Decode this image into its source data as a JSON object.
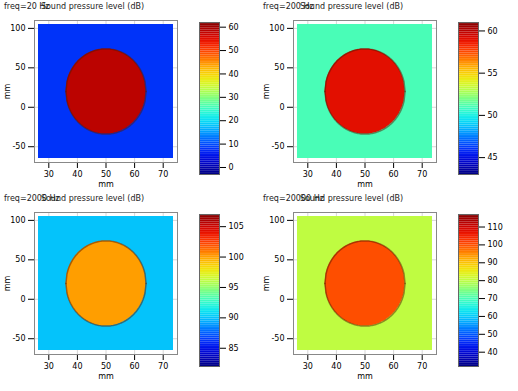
{
  "chart_data": [
    {
      "type": "surface",
      "title": "freq=20 Hz",
      "subtitle": "Sound pressure level (dB)",
      "x_label": "mm",
      "y_label": "mm",
      "xlim": [
        25,
        75
      ],
      "xticks": [
        30,
        40,
        50,
        60,
        70
      ],
      "ylim": [
        -70,
        110
      ],
      "yticks": [
        -50,
        0,
        50,
        100
      ],
      "surface_level": 8,
      "ear_level": 58,
      "colorbar_lim": [
        -3,
        62
      ],
      "colorbar_ticks": [
        0,
        10,
        20,
        30,
        40,
        50,
        60
      ]
    },
    {
      "type": "surface",
      "title": "freq=200 Hz",
      "subtitle": "Sound pressure level (dB)",
      "x_label": "mm",
      "y_label": "mm",
      "xlim": [
        25,
        75
      ],
      "xticks": [
        30,
        40,
        50,
        60,
        70
      ],
      "ylim": [
        -70,
        110
      ],
      "yticks": [
        -50,
        0,
        50,
        100
      ],
      "surface_level": 51,
      "ear_level": 59,
      "colorbar_lim": [
        43,
        61
      ],
      "colorbar_ticks": [
        45,
        50,
        55,
        60
      ]
    },
    {
      "type": "surface",
      "title": "freq=2000 Hz",
      "subtitle": "Sound pressure level (dB)",
      "x_label": "mm",
      "y_label": "mm",
      "xlim": [
        25,
        75
      ],
      "xticks": [
        30,
        40,
        50,
        60,
        70
      ],
      "ylim": [
        -70,
        110
      ],
      "yticks": [
        -50,
        0,
        50,
        100
      ],
      "surface_level": 90,
      "ear_level": 100,
      "colorbar_lim": [
        82,
        107
      ],
      "colorbar_ticks": [
        85,
        90,
        95,
        100,
        105
      ]
    },
    {
      "type": "surface",
      "title": "freq=20000 Hz",
      "subtitle": "Sound pressure level (dB)",
      "x_label": "mm",
      "y_label": "mm",
      "xlim": [
        25,
        75
      ],
      "xticks": [
        30,
        40,
        50,
        60,
        70
      ],
      "ylim": [
        -70,
        110
      ],
      "yticks": [
        -50,
        0,
        50,
        100
      ],
      "surface_level": 80,
      "ear_level": 100,
      "colorbar_lim": [
        32,
        117
      ],
      "colorbar_ticks": [
        40,
        50,
        60,
        70,
        80,
        90,
        100,
        110
      ]
    }
  ]
}
